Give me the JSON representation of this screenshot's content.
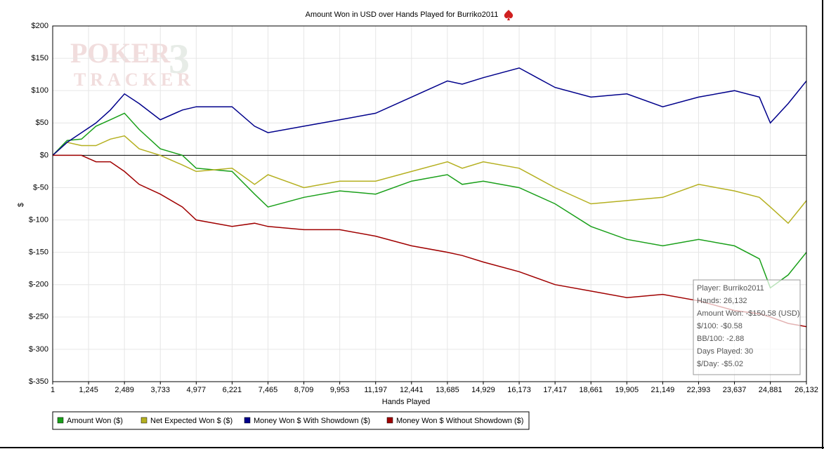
{
  "chart_data": {
    "type": "line",
    "title": "Amount Won in USD over Hands Played for Burriko2011",
    "x_label": "Hands Played",
    "y_label": "$",
    "watermark": [
      "POKER",
      "TRACKER",
      "3"
    ],
    "x": [
      1,
      500,
      1000,
      1500,
      2000,
      2489,
      3000,
      3733,
      4500,
      4977,
      6221,
      7000,
      7465,
      8709,
      9953,
      11197,
      12441,
      13685,
      14200,
      14929,
      16173,
      17417,
      18661,
      19905,
      21149,
      22393,
      23637,
      24500,
      24881,
      25500,
      26132
    ],
    "series": [
      {
        "name": "Amount Won ($)",
        "color": "#1aa01a",
        "values": [
          0,
          23,
          25,
          45,
          55,
          65,
          40,
          10,
          0,
          -20,
          -25,
          -60,
          -80,
          -65,
          -55,
          -60,
          -40,
          -30,
          -45,
          -40,
          -50,
          -75,
          -110,
          -130,
          -140,
          -130,
          -140,
          -160,
          -205,
          -185,
          -150
        ]
      },
      {
        "name": "Net Expected Won $ ($)",
        "color": "#b5b020",
        "values": [
          0,
          20,
          15,
          15,
          25,
          30,
          10,
          0,
          -15,
          -25,
          -20,
          -45,
          -30,
          -50,
          -40,
          -40,
          -25,
          -10,
          -20,
          -10,
          -20,
          -50,
          -75,
          -70,
          -65,
          -45,
          -55,
          -65,
          -80,
          -105,
          -70
        ]
      },
      {
        "name": "Money Won $ With Showdown ($)",
        "color": "#00008b",
        "values": [
          0,
          20,
          35,
          50,
          70,
          95,
          80,
          55,
          70,
          75,
          75,
          45,
          35,
          45,
          55,
          65,
          90,
          115,
          110,
          120,
          135,
          105,
          90,
          95,
          75,
          90,
          100,
          90,
          50,
          80,
          115
        ]
      },
      {
        "name": "Money Won $ Without Showdown ($)",
        "color": "#a00000",
        "values": [
          0,
          0,
          0,
          -10,
          -10,
          -25,
          -45,
          -60,
          -80,
          -100,
          -110,
          -105,
          -110,
          -115,
          -115,
          -125,
          -140,
          -150,
          -155,
          -165,
          -180,
          -200,
          -210,
          -220,
          -215,
          -225,
          -240,
          -245,
          -250,
          -260,
          -265
        ]
      }
    ],
    "xlim": [
      1,
      26132
    ],
    "xticks": [
      1,
      {
        "value": 1245,
        "label": "1,245"
      },
      {
        "value": 2489,
        "label": "2,489"
      },
      {
        "value": 3733,
        "label": "3,733"
      },
      {
        "value": 4977,
        "label": "4,977"
      },
      {
        "value": 6221,
        "label": "6,221"
      },
      {
        "value": 7465,
        "label": "7,465"
      },
      {
        "value": 8709,
        "label": "8,709"
      },
      {
        "value": 9953,
        "label": "9,953"
      },
      {
        "value": 11197,
        "label": "11,197"
      },
      {
        "value": 12441,
        "label": "12,441"
      },
      {
        "value": 13685,
        "label": "13,685"
      },
      {
        "value": 14929,
        "label": "14,929"
      },
      {
        "value": 16173,
        "label": "16,173"
      },
      {
        "value": 17417,
        "label": "17,417"
      },
      {
        "value": 18661,
        "label": "18,661"
      },
      {
        "value": 19905,
        "label": "19,905"
      },
      {
        "value": 21149,
        "label": "21,149"
      },
      {
        "value": 22393,
        "label": "22,393"
      },
      {
        "value": 23637,
        "label": "23,637"
      },
      {
        "value": 24881,
        "label": "24,881"
      },
      {
        "value": 26132,
        "label": "26,132"
      }
    ],
    "ylim": [
      -350,
      200
    ],
    "yticks": [
      {
        "value": 200,
        "label": "$200"
      },
      {
        "value": 150,
        "label": "$150"
      },
      {
        "value": 100,
        "label": "$100"
      },
      {
        "value": 50,
        "label": "$50"
      },
      {
        "value": 0,
        "label": "$0"
      },
      {
        "value": -50,
        "label": "$-50"
      },
      {
        "value": -100,
        "label": "$-100"
      },
      {
        "value": -150,
        "label": "$-150"
      },
      {
        "value": -200,
        "label": "$-200"
      },
      {
        "value": -250,
        "label": "$-250"
      },
      {
        "value": -300,
        "label": "$-300"
      },
      {
        "value": -350,
        "label": "$-350"
      }
    ],
    "grid": true,
    "tooltip": [
      "Player: Burriko2011",
      "Hands: 26,132",
      "Amount Won: -$150.58 (USD)",
      "$/100: -$0.58",
      "BB/100: -2.88",
      "Days Played: 30",
      "$/Day: -$5.02"
    ]
  }
}
